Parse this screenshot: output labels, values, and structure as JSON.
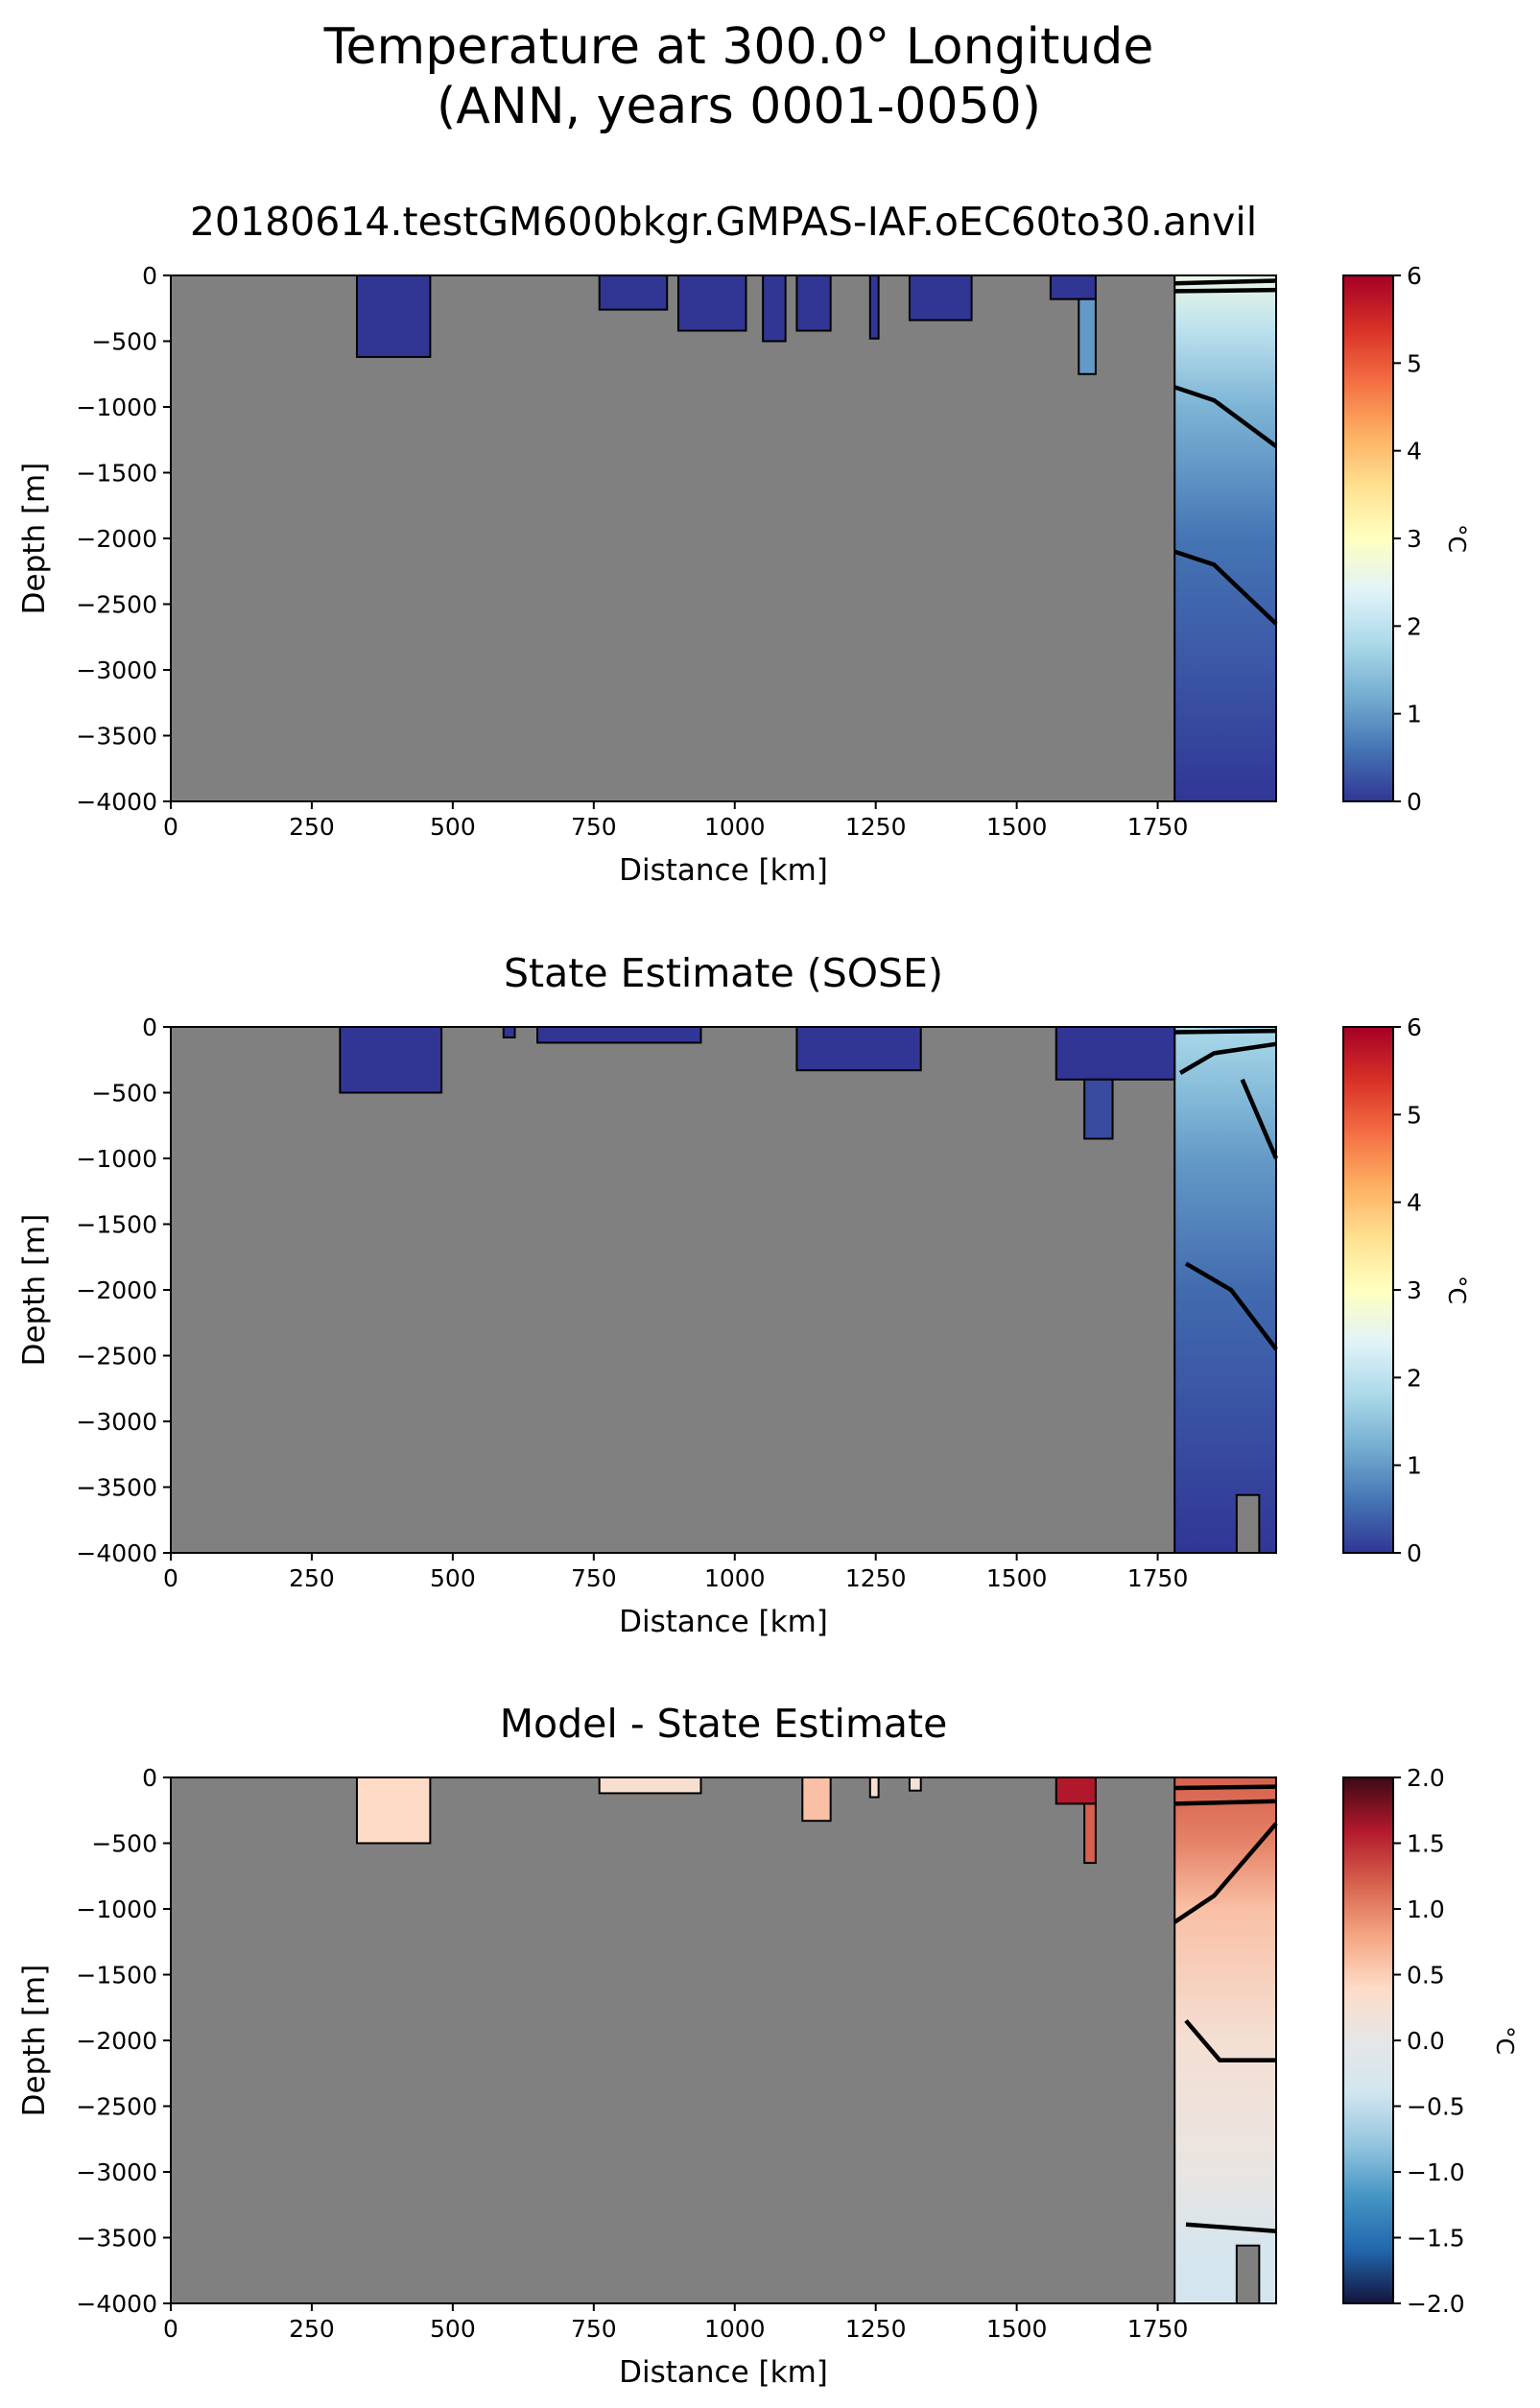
{
  "suptitle": [
    "Temperature at 300.0° Longitude",
    "(ANN, years 0001-0050)"
  ],
  "chart_data": [
    {
      "type": "heatmap",
      "title": "20180614.testGM600bkgr.GMPAS-IAF.oEC60to30.anvil",
      "xlabel": "Distance [km]",
      "ylabel": "Depth [m]",
      "xlim": [
        0,
        1960
      ],
      "ylim": [
        -4000,
        0
      ],
      "xticks": [
        0,
        250,
        500,
        750,
        1000,
        1250,
        1500,
        1750
      ],
      "yticks": [
        0,
        -500,
        -1000,
        -1500,
        -2000,
        -2500,
        -3000,
        -3500,
        -4000
      ],
      "colorbar": {
        "label": "°C",
        "ticks": [
          0,
          1,
          2,
          3,
          4,
          5,
          6
        ],
        "range": [
          0,
          6
        ],
        "colormap": "RdYlBu_r"
      },
      "land_color": "#808080",
      "contour_color": "#000000",
      "cell_fill": "#33379b",
      "ocean_cells": [
        {
          "x": [
            330,
            460
          ],
          "depth": [
            0,
            -620
          ],
          "value": 0.0
        },
        {
          "x": [
            760,
            880
          ],
          "depth": [
            0,
            -260
          ],
          "value": 0.0
        },
        {
          "x": [
            900,
            1020
          ],
          "depth": [
            0,
            -420
          ],
          "value": 0.0
        },
        {
          "x": [
            1050,
            1090
          ],
          "depth": [
            0,
            -500
          ],
          "value": 0.0
        },
        {
          "x": [
            1110,
            1170
          ],
          "depth": [
            0,
            -420
          ],
          "value": 0.0
        },
        {
          "x": [
            1240,
            1255
          ],
          "depth": [
            0,
            -480
          ],
          "value": 0.0
        },
        {
          "x": [
            1310,
            1420
          ],
          "depth": [
            0,
            -340
          ],
          "value": 0.0
        },
        {
          "x": [
            1560,
            1640
          ],
          "depth": [
            0,
            -180
          ],
          "value": 0.0
        },
        {
          "x": [
            1610,
            1640
          ],
          "depth": [
            -180,
            -750
          ],
          "value": 1.0
        }
      ],
      "open_ocean": {
        "x_start": 1780,
        "gradient": [
          {
            "depth": 0,
            "value": 2.6
          },
          {
            "depth": -400,
            "value": 2.0
          },
          {
            "depth": -1000,
            "value": 1.3
          },
          {
            "depth": -2000,
            "value": 0.6
          },
          {
            "depth": -3000,
            "value": 0.3
          },
          {
            "depth": -4000,
            "value": 0.0
          }
        ]
      },
      "contours": [
        [
          [
            1780,
            -850
          ],
          [
            1850,
            -950
          ],
          [
            1960,
            -1300
          ]
        ],
        [
          [
            1780,
            -2100
          ],
          [
            1850,
            -2200
          ],
          [
            1960,
            -2650
          ]
        ],
        [
          [
            1780,
            -60
          ],
          [
            1960,
            -40
          ]
        ],
        [
          [
            1780,
            -120
          ],
          [
            1960,
            -110
          ]
        ]
      ]
    },
    {
      "type": "heatmap",
      "title": "State Estimate (SOSE)",
      "xlabel": "Distance [km]",
      "ylabel": "Depth [m]",
      "xlim": [
        0,
        1960
      ],
      "ylim": [
        -4000,
        0
      ],
      "xticks": [
        0,
        250,
        500,
        750,
        1000,
        1250,
        1500,
        1750
      ],
      "yticks": [
        0,
        -500,
        -1000,
        -1500,
        -2000,
        -2500,
        -3000,
        -3500,
        -4000
      ],
      "colorbar": {
        "label": "°C",
        "ticks": [
          0,
          1,
          2,
          3,
          4,
          5,
          6
        ],
        "range": [
          0,
          6
        ],
        "colormap": "RdYlBu_r"
      },
      "land_color": "#808080",
      "contour_color": "#000000",
      "cell_fill": "#33379b",
      "ocean_cells": [
        {
          "x": [
            300,
            480
          ],
          "depth": [
            0,
            -500
          ],
          "value": 0.0
        },
        {
          "x": [
            590,
            610
          ],
          "depth": [
            0,
            -80
          ],
          "value": 0.0
        },
        {
          "x": [
            650,
            940
          ],
          "depth": [
            0,
            -120
          ],
          "value": 0.0
        },
        {
          "x": [
            1110,
            1330
          ],
          "depth": [
            0,
            -330
          ],
          "value": 0.0
        },
        {
          "x": [
            1570,
            1780
          ],
          "depth": [
            0,
            -400
          ],
          "value": 0.0
        },
        {
          "x": [
            1620,
            1670
          ],
          "depth": [
            -400,
            -850
          ],
          "value": 0.2
        }
      ],
      "open_ocean": {
        "x_start": 1780,
        "gradient": [
          {
            "depth": 0,
            "value": 1.8
          },
          {
            "depth": -500,
            "value": 1.4
          },
          {
            "depth": -1000,
            "value": 1.0
          },
          {
            "depth": -2000,
            "value": 0.5
          },
          {
            "depth": -3000,
            "value": 0.25
          },
          {
            "depth": -4000,
            "value": 0.0
          }
        ]
      },
      "contours": [
        [
          [
            1790,
            -350
          ],
          [
            1850,
            -200
          ],
          [
            1960,
            -130
          ]
        ],
        [
          [
            1900,
            -400
          ],
          [
            1960,
            -1000
          ]
        ],
        [
          [
            1800,
            -1800
          ],
          [
            1880,
            -2000
          ],
          [
            1960,
            -2450
          ]
        ],
        [
          [
            1780,
            -40
          ],
          [
            1960,
            -30
          ]
        ]
      ]
    },
    {
      "type": "heatmap",
      "title": "Model - State Estimate",
      "xlabel": "Distance [km]",
      "ylabel": "Depth [m]",
      "xlim": [
        0,
        1960
      ],
      "ylim": [
        -4000,
        0
      ],
      "xticks": [
        0,
        250,
        500,
        750,
        1000,
        1250,
        1500,
        1750
      ],
      "yticks": [
        0,
        -500,
        -1000,
        -1500,
        -2000,
        -2500,
        -3000,
        -3500,
        -4000
      ],
      "colorbar": {
        "label": "°C",
        "ticks": [
          -2.0,
          -1.5,
          -1.0,
          -0.5,
          0.0,
          0.5,
          1.0,
          1.5,
          2.0
        ],
        "range": [
          -2,
          2
        ],
        "colormap": "RdBu_r"
      },
      "land_color": "#808080",
      "contour_color": "#000000",
      "cell_fill": "#e9c4b2",
      "ocean_cells": [
        {
          "x": [
            330,
            460
          ],
          "depth": [
            0,
            -500
          ],
          "value": 0.4
        },
        {
          "x": [
            760,
            940
          ],
          "depth": [
            0,
            -120
          ],
          "value": 0.3
        },
        {
          "x": [
            1120,
            1170
          ],
          "depth": [
            0,
            -330
          ],
          "value": 0.6
        },
        {
          "x": [
            1240,
            1255
          ],
          "depth": [
            0,
            -150
          ],
          "value": 0.3
        },
        {
          "x": [
            1310,
            1330
          ],
          "depth": [
            0,
            -100
          ],
          "value": 0.2
        },
        {
          "x": [
            1570,
            1640
          ],
          "depth": [
            0,
            -200
          ],
          "value": 1.6
        },
        {
          "x": [
            1620,
            1640
          ],
          "depth": [
            -200,
            -650
          ],
          "value": 1.2
        }
      ],
      "open_ocean": {
        "x_start": 1780,
        "gradient": [
          {
            "depth": 0,
            "value": 1.2
          },
          {
            "depth": -500,
            "value": 1.0
          },
          {
            "depth": -1000,
            "value": 0.6
          },
          {
            "depth": -2000,
            "value": 0.25
          },
          {
            "depth": -3000,
            "value": 0.05
          },
          {
            "depth": -3600,
            "value": -0.3
          },
          {
            "depth": -4000,
            "value": -0.35
          }
        ]
      },
      "contours": [
        [
          [
            1780,
            -1100
          ],
          [
            1850,
            -900
          ],
          [
            1960,
            -350
          ]
        ],
        [
          [
            1800,
            -1850
          ],
          [
            1860,
            -2150
          ],
          [
            1960,
            -2150
          ]
        ],
        [
          [
            1800,
            -3400
          ],
          [
            1960,
            -3450
          ]
        ],
        [
          [
            1780,
            -200
          ],
          [
            1960,
            -180
          ]
        ],
        [
          [
            1780,
            -80
          ],
          [
            1960,
            -70
          ]
        ]
      ]
    }
  ]
}
